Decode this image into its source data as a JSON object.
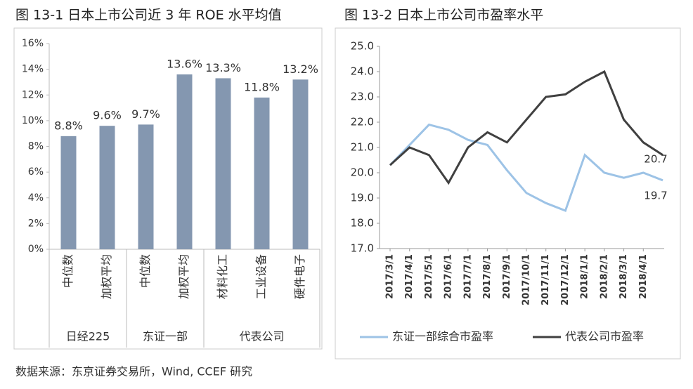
{
  "chart_data": [
    {
      "type": "bar",
      "title": "图 13-1 日本上市公司近 3 年 ROE 水平均值",
      "groups": [
        {
          "name": "日经225",
          "categories": [
            "中位数",
            "加权平均"
          ]
        },
        {
          "name": "东证一部",
          "categories": [
            "中位数",
            "加权平均"
          ]
        },
        {
          "name": "代表公司",
          "categories": [
            "材料化工",
            "工业设备",
            "硬件电子"
          ]
        }
      ],
      "values": [
        8.8,
        9.6,
        9.7,
        13.6,
        13.3,
        11.8,
        13.2
      ],
      "value_labels": [
        "8.8%",
        "9.6%",
        "9.7%",
        "13.6%",
        "13.3%",
        "11.8%",
        "13.2%"
      ],
      "color": "#8497b0",
      "ylim": [
        0,
        16
      ],
      "yticks": [
        {
          "value": 0,
          "label": "0%"
        },
        {
          "value": 2,
          "label": "2%"
        },
        {
          "value": 4,
          "label": "4%"
        },
        {
          "value": 6,
          "label": "6%"
        },
        {
          "value": 8,
          "label": "8%"
        },
        {
          "value": 10,
          "label": "10%"
        },
        {
          "value": 12,
          "label": "12%"
        },
        {
          "value": 14,
          "label": "14%"
        },
        {
          "value": 16,
          "label": "16%"
        }
      ]
    },
    {
      "type": "line",
      "title": "图 13-2 日本上市公司市盈率水平",
      "x": [
        "2017/3/1",
        "2017/4/1",
        "2017/5/1",
        "2017/6/1",
        "2017/7/1",
        "2017/8/1",
        "2017/9/1",
        "2017/10/1",
        "2017/11/1",
        "2017/12/1",
        "2018/1/1",
        "2018/2/1",
        "2018/3/1",
        "2018/4/1",
        null
      ],
      "series": [
        {
          "name": "东证一部综合市盈率",
          "color": "#9dc3e6",
          "values": [
            20.3,
            21.1,
            21.9,
            21.7,
            21.3,
            21.1,
            20.1,
            19.2,
            18.8,
            18.5,
            20.7,
            20.0,
            19.8,
            20.0,
            19.7
          ]
        },
        {
          "name": "代表公司市盈率",
          "color": "#404040",
          "values": [
            20.3,
            21.0,
            20.7,
            19.6,
            21.0,
            21.6,
            21.2,
            22.1,
            23.0,
            23.1,
            23.6,
            24.0,
            22.1,
            21.2,
            20.7
          ]
        }
      ],
      "ylim": [
        17,
        25
      ],
      "yticks": [
        {
          "value": 17,
          "label": "17.0"
        },
        {
          "value": 18,
          "label": "18.0"
        },
        {
          "value": 19,
          "label": "19.0"
        },
        {
          "value": 20,
          "label": "20.0"
        },
        {
          "value": 21,
          "label": "21.0"
        },
        {
          "value": 22,
          "label": "22.0"
        },
        {
          "value": 23,
          "label": "23.0"
        },
        {
          "value": 24,
          "label": "24.0"
        },
        {
          "value": 25,
          "label": "25.0"
        }
      ]
    }
  ],
  "source": "数据来源：东京证券交易所，Wind, CCEF 研究"
}
